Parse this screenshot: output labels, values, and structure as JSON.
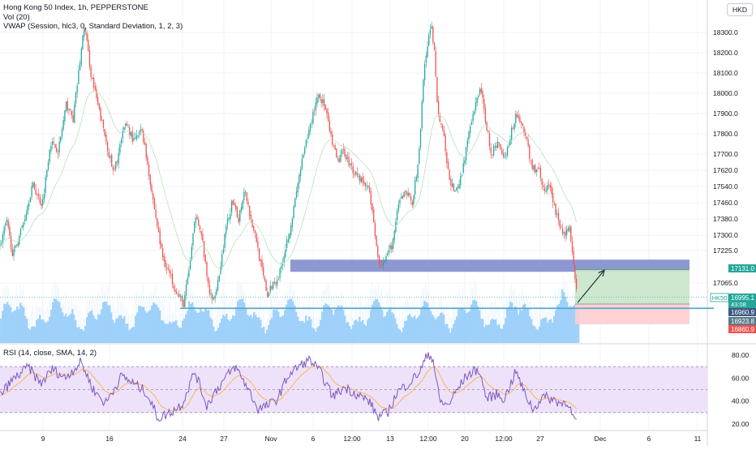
{
  "legend": {
    "title": "Hong Kong 50 Index, 1h, PEPPERSTONE",
    "vol": "Vol (20)",
    "vwap": "VWAP (Session, hlc3, 0, Standard Deviation, 1, 2, 3)"
  },
  "currency": "HKD",
  "rsi_legend": "RSI (14, close, SMA, 14, 2)",
  "colors": {
    "up": "#26a69a",
    "down": "#ef5350",
    "volume": "#90caf9",
    "zone": "#7986cb",
    "support_line": "#5aa9c9",
    "profit": "#c8e6c9",
    "loss": "#ffcdd2",
    "rsi_line": "#7e57c2",
    "rsi_ma": "#f7b955",
    "rsi_band": "#ede2fa"
  },
  "chart_data": [
    {
      "type": "candlestick",
      "title": "Hong Kong 50 Index, 1h, PEPPERSTONE",
      "ylim": [
        16860,
        18380
      ],
      "x_ticks": [
        "9",
        "16",
        "24",
        "27",
        "Nov",
        "6",
        "12:00",
        "13",
        "12:00",
        "20",
        "12:00",
        "27",
        "Dec",
        "6",
        "11"
      ],
      "y_ticks": [
        18300.0,
        18200.0,
        18100.0,
        18000.0,
        17900.0,
        17800.0,
        17700.0,
        17620.0,
        17540.0,
        17460.0,
        17380.0,
        17300.0,
        17225.0,
        17065.0
      ],
      "price_path": [
        {
          "t": 0,
          "p": 17250
        },
        {
          "t": 8,
          "p": 17370
        },
        {
          "t": 16,
          "p": 17200
        },
        {
          "t": 30,
          "p": 17380
        },
        {
          "t": 40,
          "p": 17550
        },
        {
          "t": 52,
          "p": 17450
        },
        {
          "t": 62,
          "p": 17760
        },
        {
          "t": 72,
          "p": 17720
        },
        {
          "t": 82,
          "p": 17950
        },
        {
          "t": 90,
          "p": 17870
        },
        {
          "t": 104,
          "p": 18340
        },
        {
          "t": 112,
          "p": 18100
        },
        {
          "t": 120,
          "p": 17950
        },
        {
          "t": 130,
          "p": 17780
        },
        {
          "t": 140,
          "p": 17600
        },
        {
          "t": 155,
          "p": 17860
        },
        {
          "t": 165,
          "p": 17760
        },
        {
          "t": 175,
          "p": 17820
        },
        {
          "t": 182,
          "p": 17650
        },
        {
          "t": 190,
          "p": 17440
        },
        {
          "t": 200,
          "p": 17200
        },
        {
          "t": 210,
          "p": 17100
        },
        {
          "t": 220,
          "p": 17000
        },
        {
          "t": 226,
          "p": 16960
        },
        {
          "t": 232,
          "p": 17100
        },
        {
          "t": 242,
          "p": 17420
        },
        {
          "t": 250,
          "p": 17260
        },
        {
          "t": 256,
          "p": 17060
        },
        {
          "t": 262,
          "p": 16970
        },
        {
          "t": 270,
          "p": 17100
        },
        {
          "t": 278,
          "p": 17320
        },
        {
          "t": 286,
          "p": 17460
        },
        {
          "t": 294,
          "p": 17380
        },
        {
          "t": 302,
          "p": 17540
        },
        {
          "t": 308,
          "p": 17400
        },
        {
          "t": 316,
          "p": 17280
        },
        {
          "t": 322,
          "p": 17140
        },
        {
          "t": 330,
          "p": 17000
        },
        {
          "t": 336,
          "p": 17060
        },
        {
          "t": 344,
          "p": 17100
        },
        {
          "t": 352,
          "p": 17240
        },
        {
          "t": 360,
          "p": 17380
        },
        {
          "t": 370,
          "p": 17620
        },
        {
          "t": 380,
          "p": 17800
        },
        {
          "t": 392,
          "p": 18000
        },
        {
          "t": 400,
          "p": 17940
        },
        {
          "t": 408,
          "p": 17780
        },
        {
          "t": 416,
          "p": 17660
        },
        {
          "t": 424,
          "p": 17720
        },
        {
          "t": 432,
          "p": 17640
        },
        {
          "t": 440,
          "p": 17600
        },
        {
          "t": 448,
          "p": 17560
        },
        {
          "t": 456,
          "p": 17520
        },
        {
          "t": 462,
          "p": 17300
        },
        {
          "t": 468,
          "p": 17160
        },
        {
          "t": 476,
          "p": 17180
        },
        {
          "t": 484,
          "p": 17260
        },
        {
          "t": 492,
          "p": 17460
        },
        {
          "t": 500,
          "p": 17520
        },
        {
          "t": 508,
          "p": 17460
        },
        {
          "t": 516,
          "p": 17660
        },
        {
          "t": 522,
          "p": 18080
        },
        {
          "t": 527,
          "p": 18240
        },
        {
          "t": 532,
          "p": 18330
        },
        {
          "t": 536,
          "p": 18180
        },
        {
          "t": 540,
          "p": 17900
        },
        {
          "t": 546,
          "p": 17820
        },
        {
          "t": 552,
          "p": 17620
        },
        {
          "t": 560,
          "p": 17500
        },
        {
          "t": 568,
          "p": 17580
        },
        {
          "t": 576,
          "p": 17760
        },
        {
          "t": 584,
          "p": 17900
        },
        {
          "t": 592,
          "p": 18040
        },
        {
          "t": 598,
          "p": 17880
        },
        {
          "t": 606,
          "p": 17700
        },
        {
          "t": 614,
          "p": 17760
        },
        {
          "t": 622,
          "p": 17680
        },
        {
          "t": 630,
          "p": 17800
        },
        {
          "t": 636,
          "p": 17900
        },
        {
          "t": 642,
          "p": 17860
        },
        {
          "t": 650,
          "p": 17760
        },
        {
          "t": 656,
          "p": 17620
        },
        {
          "t": 664,
          "p": 17640
        },
        {
          "t": 670,
          "p": 17520
        },
        {
          "t": 678,
          "p": 17540
        },
        {
          "t": 686,
          "p": 17400
        },
        {
          "t": 694,
          "p": 17300
        },
        {
          "t": 702,
          "p": 17340
        },
        {
          "t": 706,
          "p": 17200
        },
        {
          "t": 709,
          "p": 17060
        },
        {
          "t": 712,
          "p": 16995
        }
      ],
      "price_labels": [
        {
          "symbol": "",
          "value": "17131.0",
          "price": 17131,
          "color": "#26a69a"
        },
        {
          "symbol": "HK50",
          "value": "16995.1",
          "sub": "43:08",
          "price": 16995,
          "color": "#26a69a"
        },
        {
          "symbol": "",
          "value": "16960.9",
          "price": 16961,
          "color": "#3d5a80"
        },
        {
          "symbol": "",
          "value": "16923.8",
          "price": 16924,
          "color": "#5b7a8c"
        },
        {
          "symbol": "",
          "value": "16860.9",
          "price": 16861,
          "color": "#ef5350"
        }
      ],
      "resistance_zone": {
        "from_t": 358,
        "to_t": 850,
        "low": 17120,
        "high": 17180
      },
      "support_level": {
        "from_t": 222,
        "to_t": 880,
        "price": 16940
      },
      "long_position": {
        "from_t": 709,
        "to_t": 850,
        "entry": 16961,
        "target": 17131,
        "stop": 16861
      },
      "projection_arrow": {
        "from_t": 712,
        "from_p": 16968,
        "to_t": 745,
        "to_p": 17128
      }
    },
    {
      "type": "line",
      "title": "RSI (14, close, SMA, 14, 2)",
      "ylim": [
        18,
        86
      ],
      "y_ticks": [
        80.0,
        60.0,
        40.0,
        20.0
      ],
      "bands": {
        "upper": 70,
        "mid": 50,
        "lower": 30
      },
      "values_path": [
        {
          "t": 0,
          "v": 45
        },
        {
          "t": 15,
          "v": 58
        },
        {
          "t": 35,
          "v": 70
        },
        {
          "t": 50,
          "v": 55
        },
        {
          "t": 65,
          "v": 68
        },
        {
          "t": 80,
          "v": 60
        },
        {
          "t": 100,
          "v": 74
        },
        {
          "t": 115,
          "v": 50
        },
        {
          "t": 130,
          "v": 38
        },
        {
          "t": 150,
          "v": 62
        },
        {
          "t": 165,
          "v": 55
        },
        {
          "t": 180,
          "v": 48
        },
        {
          "t": 195,
          "v": 25
        },
        {
          "t": 210,
          "v": 30
        },
        {
          "t": 225,
          "v": 38
        },
        {
          "t": 240,
          "v": 66
        },
        {
          "t": 255,
          "v": 36
        },
        {
          "t": 265,
          "v": 48
        },
        {
          "t": 280,
          "v": 62
        },
        {
          "t": 290,
          "v": 70
        },
        {
          "t": 305,
          "v": 52
        },
        {
          "t": 318,
          "v": 33
        },
        {
          "t": 330,
          "v": 36
        },
        {
          "t": 342,
          "v": 42
        },
        {
          "t": 355,
          "v": 62
        },
        {
          "t": 368,
          "v": 70
        },
        {
          "t": 382,
          "v": 76
        },
        {
          "t": 396,
          "v": 64
        },
        {
          "t": 410,
          "v": 44
        },
        {
          "t": 425,
          "v": 52
        },
        {
          "t": 440,
          "v": 46
        },
        {
          "t": 455,
          "v": 40
        },
        {
          "t": 466,
          "v": 26
        },
        {
          "t": 478,
          "v": 30
        },
        {
          "t": 490,
          "v": 48
        },
        {
          "t": 505,
          "v": 56
        },
        {
          "t": 518,
          "v": 66
        },
        {
          "t": 528,
          "v": 82
        },
        {
          "t": 534,
          "v": 76
        },
        {
          "t": 542,
          "v": 40
        },
        {
          "t": 552,
          "v": 36
        },
        {
          "t": 562,
          "v": 48
        },
        {
          "t": 575,
          "v": 62
        },
        {
          "t": 590,
          "v": 68
        },
        {
          "t": 600,
          "v": 42
        },
        {
          "t": 612,
          "v": 46
        },
        {
          "t": 622,
          "v": 42
        },
        {
          "t": 636,
          "v": 66
        },
        {
          "t": 646,
          "v": 48
        },
        {
          "t": 658,
          "v": 32
        },
        {
          "t": 668,
          "v": 44
        },
        {
          "t": 680,
          "v": 42
        },
        {
          "t": 692,
          "v": 38
        },
        {
          "t": 700,
          "v": 40
        },
        {
          "t": 706,
          "v": 26
        },
        {
          "t": 711,
          "v": 22
        }
      ]
    }
  ]
}
